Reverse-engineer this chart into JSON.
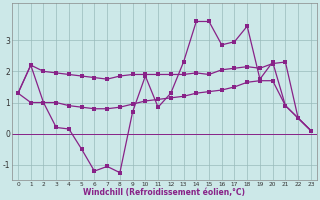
{
  "xlabel": "Windchill (Refroidissement éolien,°C)",
  "background_color": "#cce8e8",
  "grid_color": "#99bbbb",
  "line_color": "#882288",
  "x": [
    0,
    1,
    2,
    3,
    4,
    5,
    6,
    7,
    8,
    9,
    10,
    11,
    12,
    13,
    14,
    15,
    16,
    17,
    18,
    19,
    20,
    21,
    22,
    23
  ],
  "y_main": [
    1.3,
    2.2,
    1.0,
    0.2,
    0.15,
    -0.5,
    -1.2,
    -1.05,
    -1.25,
    0.7,
    1.85,
    0.85,
    1.3,
    2.3,
    3.6,
    3.6,
    2.85,
    2.95,
    3.45,
    1.75,
    2.3,
    0.9,
    0.5,
    0.1
  ],
  "y_upper": [
    1.3,
    2.2,
    2.0,
    1.95,
    1.9,
    1.85,
    1.8,
    1.75,
    1.85,
    1.9,
    1.9,
    1.9,
    1.9,
    1.9,
    1.95,
    1.9,
    2.05,
    2.1,
    2.15,
    2.1,
    2.25,
    2.3,
    0.5,
    0.1
  ],
  "y_lower": [
    1.3,
    1.0,
    1.0,
    1.0,
    0.9,
    0.85,
    0.8,
    0.8,
    0.85,
    0.95,
    1.05,
    1.1,
    1.15,
    1.2,
    1.3,
    1.35,
    1.4,
    1.5,
    1.65,
    1.7,
    1.7,
    0.9,
    0.5,
    0.1
  ],
  "y_zero_line": 0.0,
  "ylim": [
    -1.5,
    4.2
  ],
  "xlim": [
    -0.5,
    23.5
  ],
  "yticks": [
    -1,
    0,
    1,
    2,
    3
  ],
  "xticks": [
    0,
    1,
    2,
    3,
    4,
    5,
    6,
    7,
    8,
    9,
    10,
    11,
    12,
    13,
    14,
    15,
    16,
    17,
    18,
    19,
    20,
    21,
    22,
    23
  ]
}
